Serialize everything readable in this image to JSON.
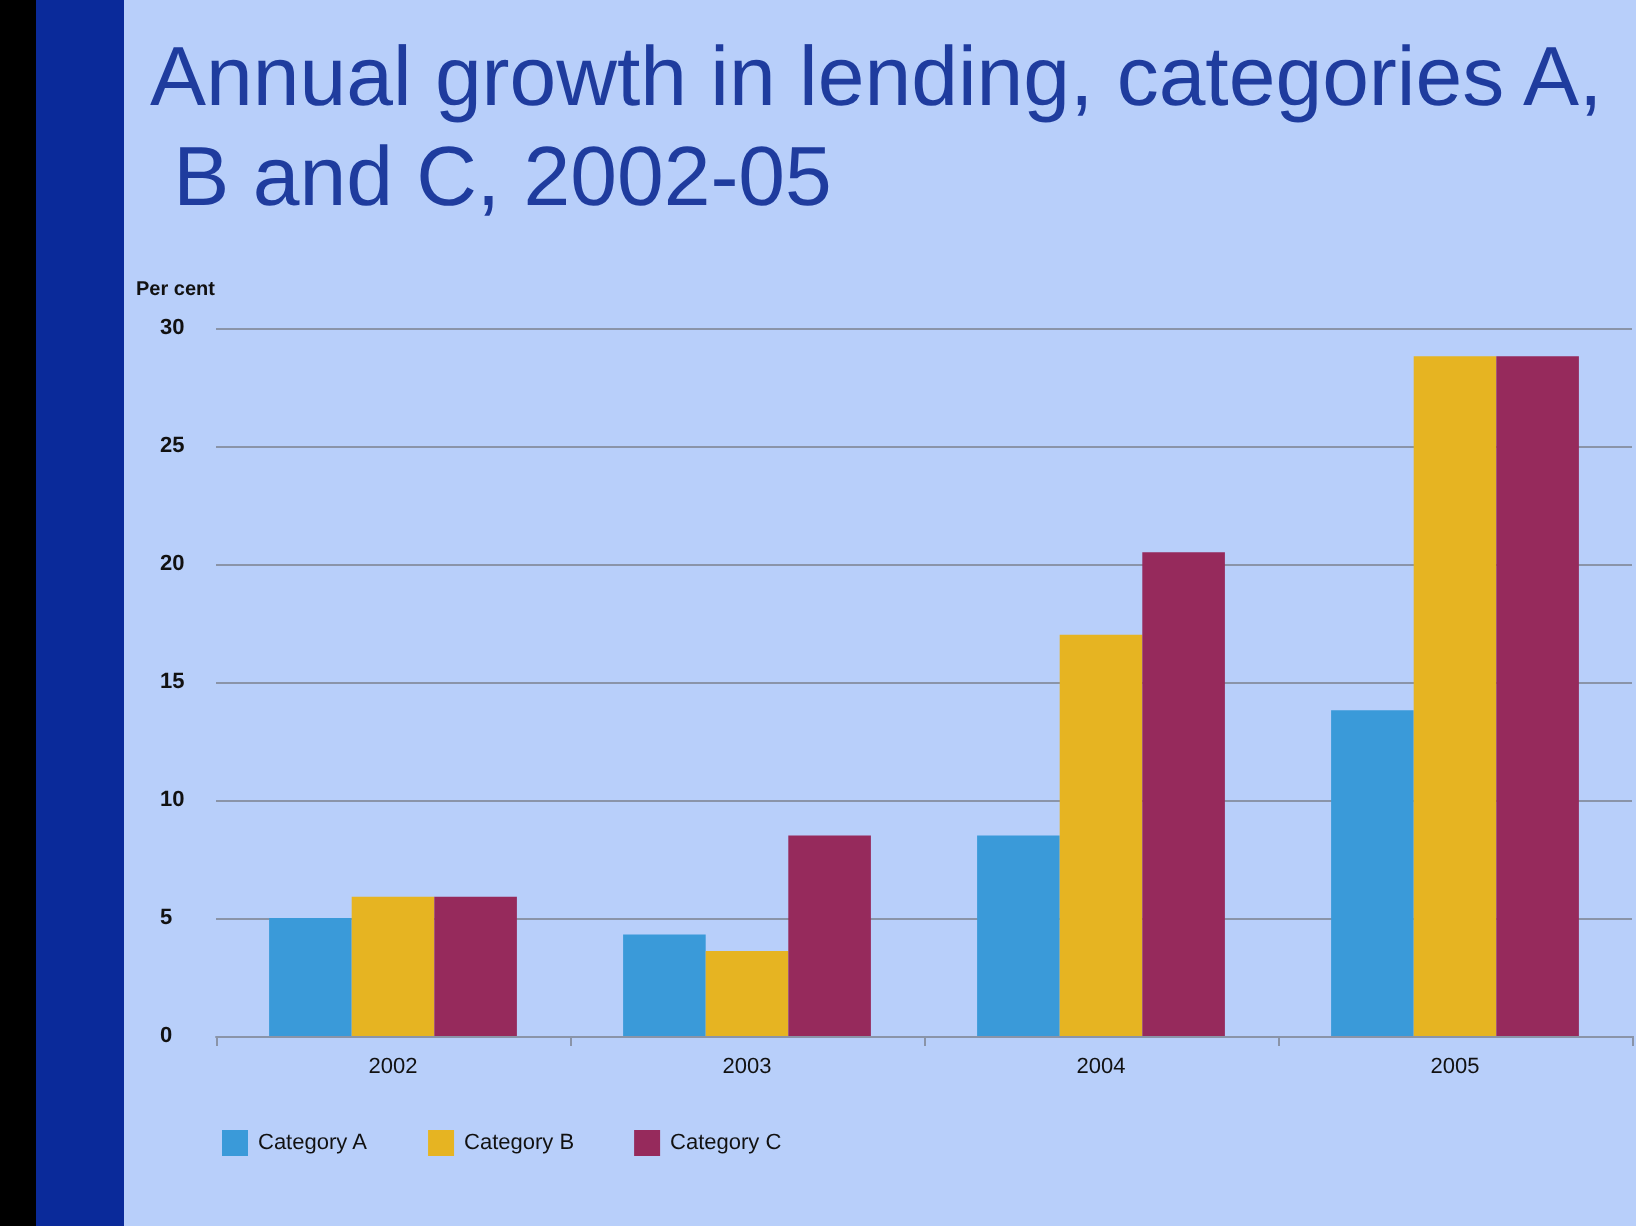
{
  "chart_data": {
    "type": "bar",
    "title": "Annual growth in lending, categories A, B and C, 2002-05",
    "ylabel": "Per cent",
    "categories": [
      "2002",
      "2003",
      "2004",
      "2005"
    ],
    "series": [
      {
        "name": "Category A",
        "color": "#3a9ad9",
        "values": [
          5,
          4.3,
          8.5,
          13.8
        ]
      },
      {
        "name": "Category B",
        "color": "#e6b422",
        "values": [
          5.9,
          3.6,
          17,
          28.8
        ]
      },
      {
        "name": "Category C",
        "color": "#962a5c",
        "values": [
          5.9,
          8.5,
          20.5,
          28.8
        ]
      }
    ],
    "ylim": [
      0,
      30
    ],
    "yticks": [
      0,
      5,
      10,
      15,
      20,
      25,
      30
    ],
    "grid": "y",
    "legend": "bottom left"
  }
}
